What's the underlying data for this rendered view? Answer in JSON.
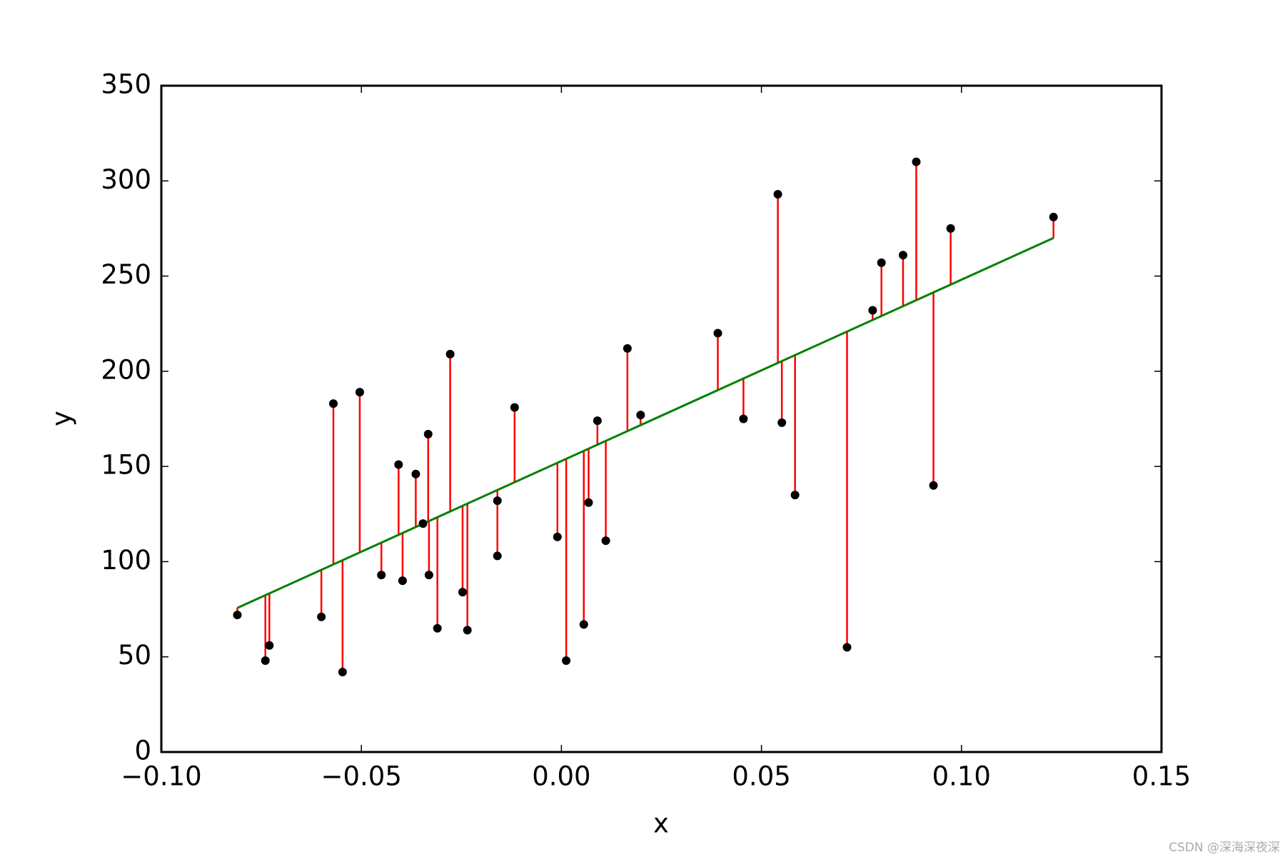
{
  "chart_data": {
    "type": "scatter",
    "xlabel": "x",
    "ylabel": "y",
    "x": [
      -0.081,
      -0.074,
      -0.073,
      -0.06,
      -0.057,
      -0.0547,
      -0.0504,
      -0.045,
      -0.0407,
      -0.0397,
      -0.0364,
      -0.0346,
      -0.0333,
      -0.0331,
      -0.031,
      -0.0278,
      -0.0247,
      -0.0235,
      -0.016,
      -0.016,
      -0.0117,
      -0.001,
      0.0012,
      0.0056,
      0.0068,
      0.009,
      0.0111,
      0.0165,
      0.0198,
      0.0391,
      0.0455,
      0.0541,
      0.0551,
      0.0584,
      0.0714,
      0.0778,
      0.08,
      0.0854,
      0.0887,
      0.093,
      0.0973,
      0.123
    ],
    "values": [
      72,
      48,
      56,
      71,
      183,
      42,
      189,
      93,
      151,
      90,
      146,
      120,
      167,
      93,
      65,
      209,
      84,
      64,
      132,
      103,
      181,
      113,
      48,
      67,
      131,
      174,
      111,
      212,
      177,
      220,
      175,
      293,
      173,
      135,
      55,
      232,
      257,
      261,
      310,
      140,
      275,
      281
    ],
    "color": "#000000",
    "residual_color": "#ff0000",
    "line": {
      "x": [
        -0.081,
        0.123
      ],
      "values": [
        75.7,
        270
      ],
      "color": "#008000"
    },
    "xlim": [
      -0.1,
      0.15
    ],
    "xticks": [
      {
        "value": -0.1,
        "label": "−0.10"
      },
      {
        "value": -0.05,
        "label": "−0.05"
      },
      {
        "value": 0.0,
        "label": "0.00"
      },
      0.05,
      {
        "value": 0.1,
        "label": "0.10"
      },
      0.15
    ],
    "ylim": [
      0,
      350
    ],
    "yticks": [
      0,
      50,
      100,
      150,
      200,
      250,
      300,
      350
    ],
    "grid": false
  },
  "watermark": "CSDN @深海深夜深"
}
